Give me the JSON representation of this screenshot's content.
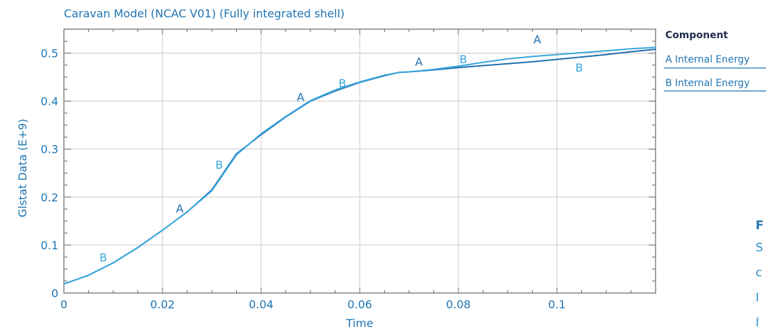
{
  "chart_data": {
    "type": "line",
    "title": "Caravan Model (NCAC V01) (Fully integrated shell)",
    "xlabel": "Time",
    "ylabel": "Glstat Data (E+9)",
    "xlim": [
      0,
      0.12
    ],
    "ylim": [
      0,
      0.55
    ],
    "x_ticks": [
      0,
      0.02,
      0.04,
      0.06,
      0.08,
      0.1
    ],
    "x_tick_labels": [
      "0",
      "0.02",
      "0.04",
      "0.06",
      "0.08",
      "0.1"
    ],
    "y_ticks": [
      0,
      0.1,
      0.2,
      0.3,
      0.4,
      0.5
    ],
    "y_tick_labels": [
      "0",
      "0.1",
      "0.2",
      "0.3",
      "0.4",
      "0.5"
    ],
    "grid": true,
    "legend": {
      "title": "Component",
      "placement": "right",
      "entries": [
        "A Internal Energy",
        "B Internal Energy"
      ]
    },
    "series": [
      {
        "name": "A Internal Energy",
        "marker_letter": "A",
        "color": "#1f6fb0",
        "x": [
          0,
          0.005,
          0.01,
          0.015,
          0.02,
          0.025,
          0.03,
          0.035,
          0.04,
          0.045,
          0.05,
          0.055,
          0.06,
          0.065,
          0.068,
          0.07,
          0.075,
          0.08,
          0.085,
          0.09,
          0.095,
          0.1,
          0.105,
          0.11,
          0.115,
          0.12
        ],
        "y": [
          0.019,
          0.037,
          0.063,
          0.095,
          0.131,
          0.169,
          0.215,
          0.29,
          0.33,
          0.367,
          0.4,
          0.421,
          0.439,
          0.453,
          0.46,
          0.461,
          0.465,
          0.47,
          0.474,
          0.478,
          0.482,
          0.487,
          0.492,
          0.497,
          0.503,
          0.508
        ],
        "label_positions": [
          [
            0.0235,
            0.168
          ],
          [
            0.048,
            0.4
          ],
          [
            0.072,
            0.474
          ],
          [
            0.096,
            0.52
          ]
        ]
      },
      {
        "name": "B Internal Energy",
        "marker_letter": "B",
        "color": "#38a6dc",
        "x": [
          0,
          0.005,
          0.01,
          0.015,
          0.02,
          0.025,
          0.03,
          0.035,
          0.04,
          0.045,
          0.05,
          0.055,
          0.06,
          0.065,
          0.068,
          0.07,
          0.075,
          0.08,
          0.085,
          0.09,
          0.095,
          0.1,
          0.105,
          0.11,
          0.115,
          0.12
        ],
        "y": [
          0.019,
          0.037,
          0.063,
          0.095,
          0.131,
          0.169,
          0.213,
          0.288,
          0.332,
          0.368,
          0.401,
          0.423,
          0.44,
          0.454,
          0.46,
          0.461,
          0.466,
          0.473,
          0.481,
          0.488,
          0.493,
          0.497,
          0.501,
          0.505,
          0.509,
          0.512
        ],
        "label_positions": [
          [
            0.008,
            0.066
          ],
          [
            0.0315,
            0.259
          ],
          [
            0.0565,
            0.429
          ],
          [
            0.081,
            0.479
          ],
          [
            0.1045,
            0.462
          ]
        ]
      }
    ]
  },
  "side_note": {
    "heading": "F",
    "lines": [
      "S",
      "c",
      "I",
      "I"
    ]
  }
}
